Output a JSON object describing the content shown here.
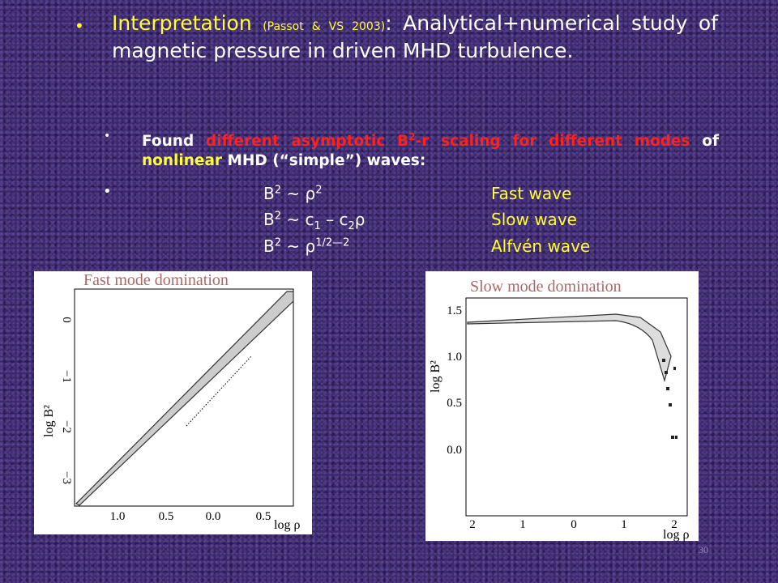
{
  "bullets": [
    {
      "runs": [
        "Interpretation",
        "(Passot & VS 2003)",
        ": Analytical+numerical study of magnetic pressure in driven MHD turbulence."
      ]
    },
    {
      "runs": [
        "Found ",
        "different asymptotic B",
        "2",
        "-r scaling for different modes",
        " of ",
        "nonlinear",
        " MHD (“simple”) waves:"
      ]
    }
  ],
  "scalings": [
    {
      "formula": [
        "B",
        "2",
        " ~ ",
        "ρ",
        "2"
      ],
      "mode": "Fast wave"
    },
    {
      "formula": [
        "B",
        "2",
        " ~ c",
        "1",
        " – c",
        "2",
        "ρ"
      ],
      "mode": "Slow wave"
    },
    {
      "formula": [
        "B",
        "2",
        " ~ ",
        "ρ",
        "1/2—2"
      ],
      "mode": "Alfvén wave"
    }
  ],
  "plots": [
    {
      "title": "Fast mode domination",
      "ylabel": "log B²",
      "xlabel": "log ρ",
      "yticks": [
        "0",
        "−1",
        "−2",
        "−3"
      ],
      "xticks": [
        "1.0",
        "0.5",
        "0.0",
        "0.5"
      ]
    },
    {
      "title": "Slow mode domination",
      "ylabel": "log B²",
      "xlabel": "log ρ",
      "yticks": [
        "1.5",
        "1.0",
        "0.5",
        "0.0"
      ],
      "xticks": [
        "2",
        "1",
        "0",
        "1",
        "2"
      ]
    }
  ],
  "page_number": "30"
}
